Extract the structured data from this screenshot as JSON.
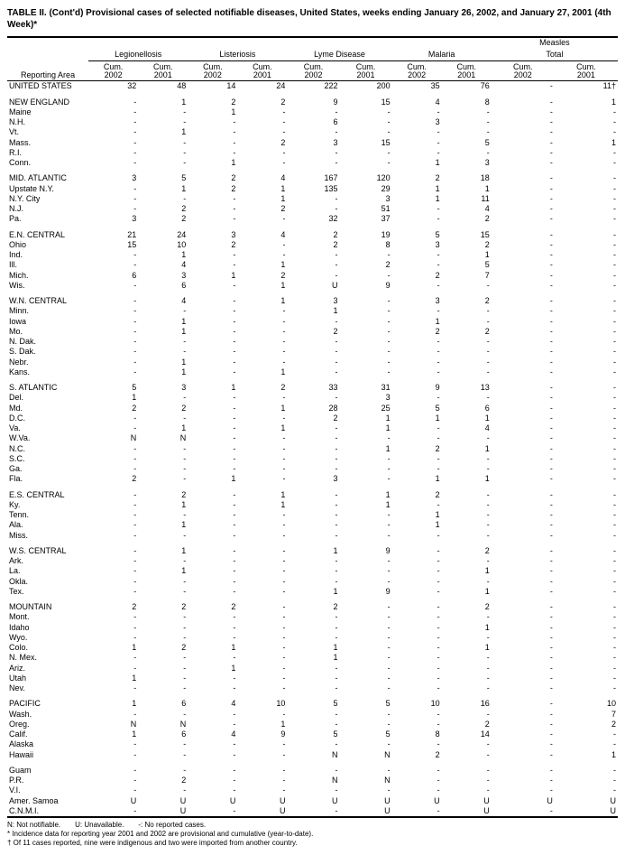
{
  "title": "TABLE II. (Cont'd) Provisional cases of selected notifiable diseases, United States, weeks ending January 26, 2002, and January 27, 2001 (4th Week)*",
  "reporting_area_label": "Reporting Area",
  "col_groups": [
    {
      "label": "Legionellosis"
    },
    {
      "label": "Listeriosis"
    },
    {
      "label": "Lyme Disease"
    },
    {
      "label": "Malaria"
    },
    {
      "label": "Measles",
      "sublabel": "Total"
    }
  ],
  "sub_headers": [
    "Cum.\n2002",
    "Cum.\n2001"
  ],
  "footnotes": [
    "N: Not notifiable.  U: Unavailable.  -: No reported cases.",
    "* Incidence data for reporting year 2001 and 2002 are provisional and cumulative (year-to-date).",
    "† Of 11 cases reported, nine were indigenous and two were imported from another country."
  ],
  "sections": [
    {
      "rows": [
        {
          "area": "UNITED STATES",
          "v": [
            "32",
            "48",
            "14",
            "24",
            "222",
            "200",
            "35",
            "76",
            "-",
            "11†"
          ]
        }
      ]
    },
    {
      "rows": [
        {
          "area": "NEW ENGLAND",
          "v": [
            "-",
            "1",
            "2",
            "2",
            "9",
            "15",
            "4",
            "8",
            "-",
            "1"
          ]
        },
        {
          "area": "Maine",
          "v": [
            "-",
            "-",
            "1",
            "-",
            "-",
            "-",
            "-",
            "-",
            "-",
            "-"
          ]
        },
        {
          "area": "N.H.",
          "v": [
            "-",
            "-",
            "-",
            "-",
            "6",
            "-",
            "3",
            "-",
            "-",
            "-"
          ]
        },
        {
          "area": "Vt.",
          "v": [
            "-",
            "1",
            "-",
            "-",
            "-",
            "-",
            "-",
            "-",
            "-",
            "-"
          ]
        },
        {
          "area": "Mass.",
          "v": [
            "-",
            "-",
            "-",
            "2",
            "3",
            "15",
            "-",
            "5",
            "-",
            "1"
          ]
        },
        {
          "area": "R.I.",
          "v": [
            "-",
            "-",
            "-",
            "-",
            "-",
            "-",
            "-",
            "-",
            "-",
            "-"
          ]
        },
        {
          "area": "Conn.",
          "v": [
            "-",
            "-",
            "1",
            "-",
            "-",
            "-",
            "1",
            "3",
            "-",
            "-"
          ]
        }
      ]
    },
    {
      "rows": [
        {
          "area": "MID. ATLANTIC",
          "v": [
            "3",
            "5",
            "2",
            "4",
            "167",
            "120",
            "2",
            "18",
            "-",
            "-"
          ]
        },
        {
          "area": "Upstate N.Y.",
          "v": [
            "-",
            "1",
            "2",
            "1",
            "135",
            "29",
            "1",
            "1",
            "-",
            "-"
          ]
        },
        {
          "area": "N.Y. City",
          "v": [
            "-",
            "-",
            "-",
            "1",
            "-",
            "3",
            "1",
            "11",
            "-",
            "-"
          ]
        },
        {
          "area": "N.J.",
          "v": [
            "-",
            "2",
            "-",
            "2",
            "-",
            "51",
            "-",
            "4",
            "-",
            "-"
          ]
        },
        {
          "area": "Pa.",
          "v": [
            "3",
            "2",
            "-",
            "-",
            "32",
            "37",
            "-",
            "2",
            "-",
            "-"
          ]
        }
      ]
    },
    {
      "rows": [
        {
          "area": "E.N. CENTRAL",
          "v": [
            "21",
            "24",
            "3",
            "4",
            "2",
            "19",
            "5",
            "15",
            "-",
            "-"
          ]
        },
        {
          "area": "Ohio",
          "v": [
            "15",
            "10",
            "2",
            "-",
            "2",
            "8",
            "3",
            "2",
            "-",
            "-"
          ]
        },
        {
          "area": "Ind.",
          "v": [
            "-",
            "1",
            "-",
            "-",
            "-",
            "-",
            "-",
            "1",
            "-",
            "-"
          ]
        },
        {
          "area": "Ill.",
          "v": [
            "-",
            "4",
            "-",
            "1",
            "-",
            "2",
            "-",
            "5",
            "-",
            "-"
          ]
        },
        {
          "area": "Mich.",
          "v": [
            "6",
            "3",
            "1",
            "2",
            "-",
            "-",
            "2",
            "7",
            "-",
            "-"
          ]
        },
        {
          "area": "Wis.",
          "v": [
            "-",
            "6",
            "-",
            "1",
            "U",
            "9",
            "-",
            "-",
            "-",
            "-"
          ]
        }
      ]
    },
    {
      "rows": [
        {
          "area": "W.N. CENTRAL",
          "v": [
            "-",
            "4",
            "-",
            "1",
            "3",
            "-",
            "3",
            "2",
            "-",
            "-"
          ]
        },
        {
          "area": "Minn.",
          "v": [
            "-",
            "-",
            "-",
            "-",
            "1",
            "-",
            "-",
            "-",
            "-",
            "-"
          ]
        },
        {
          "area": "Iowa",
          "v": [
            "-",
            "1",
            "-",
            "-",
            "-",
            "-",
            "1",
            "-",
            "-",
            "-"
          ]
        },
        {
          "area": "Mo.",
          "v": [
            "-",
            "1",
            "-",
            "-",
            "2",
            "-",
            "2",
            "2",
            "-",
            "-"
          ]
        },
        {
          "area": "N. Dak.",
          "v": [
            "-",
            "-",
            "-",
            "-",
            "-",
            "-",
            "-",
            "-",
            "-",
            "-"
          ]
        },
        {
          "area": "S. Dak.",
          "v": [
            "-",
            "-",
            "-",
            "-",
            "-",
            "-",
            "-",
            "-",
            "-",
            "-"
          ]
        },
        {
          "area": "Nebr.",
          "v": [
            "-",
            "1",
            "-",
            "-",
            "-",
            "-",
            "-",
            "-",
            "-",
            "-"
          ]
        },
        {
          "area": "Kans.",
          "v": [
            "-",
            "1",
            "-",
            "1",
            "-",
            "-",
            "-",
            "-",
            "-",
            "-"
          ]
        }
      ]
    },
    {
      "rows": [
        {
          "area": "S. ATLANTIC",
          "v": [
            "5",
            "3",
            "1",
            "2",
            "33",
            "31",
            "9",
            "13",
            "-",
            "-"
          ]
        },
        {
          "area": "Del.",
          "v": [
            "1",
            "-",
            "-",
            "-",
            "-",
            "3",
            "-",
            "-",
            "-",
            "-"
          ]
        },
        {
          "area": "Md.",
          "v": [
            "2",
            "2",
            "-",
            "1",
            "28",
            "25",
            "5",
            "6",
            "-",
            "-"
          ]
        },
        {
          "area": "D.C.",
          "v": [
            "-",
            "-",
            "-",
            "-",
            "2",
            "1",
            "1",
            "1",
            "-",
            "-"
          ]
        },
        {
          "area": "Va.",
          "v": [
            "-",
            "1",
            "-",
            "1",
            "-",
            "1",
            "-",
            "4",
            "-",
            "-"
          ]
        },
        {
          "area": "W.Va.",
          "v": [
            "N",
            "N",
            "-",
            "-",
            "-",
            "-",
            "-",
            "-",
            "-",
            "-"
          ]
        },
        {
          "area": "N.C.",
          "v": [
            "-",
            "-",
            "-",
            "-",
            "-",
            "1",
            "2",
            "1",
            "-",
            "-"
          ]
        },
        {
          "area": "S.C.",
          "v": [
            "-",
            "-",
            "-",
            "-",
            "-",
            "-",
            "-",
            "-",
            "-",
            "-"
          ]
        },
        {
          "area": "Ga.",
          "v": [
            "-",
            "-",
            "-",
            "-",
            "-",
            "-",
            "-",
            "-",
            "-",
            "-"
          ]
        },
        {
          "area": "Fla.",
          "v": [
            "2",
            "-",
            "1",
            "-",
            "3",
            "-",
            "1",
            "1",
            "-",
            "-"
          ]
        }
      ]
    },
    {
      "rows": [
        {
          "area": "E.S. CENTRAL",
          "v": [
            "-",
            "2",
            "-",
            "1",
            "-",
            "1",
            "2",
            "-",
            "-",
            "-"
          ]
        },
        {
          "area": "Ky.",
          "v": [
            "-",
            "1",
            "-",
            "1",
            "-",
            "1",
            "-",
            "-",
            "-",
            "-"
          ]
        },
        {
          "area": "Tenn.",
          "v": [
            "-",
            "-",
            "-",
            "-",
            "-",
            "-",
            "1",
            "-",
            "-",
            "-"
          ]
        },
        {
          "area": "Ala.",
          "v": [
            "-",
            "1",
            "-",
            "-",
            "-",
            "-",
            "1",
            "-",
            "-",
            "-"
          ]
        },
        {
          "area": "Miss.",
          "v": [
            "-",
            "-",
            "-",
            "-",
            "-",
            "-",
            "-",
            "-",
            "-",
            "-"
          ]
        }
      ]
    },
    {
      "rows": [
        {
          "area": "W.S. CENTRAL",
          "v": [
            "-",
            "1",
            "-",
            "-",
            "1",
            "9",
            "-",
            "2",
            "-",
            "-"
          ]
        },
        {
          "area": "Ark.",
          "v": [
            "-",
            "-",
            "-",
            "-",
            "-",
            "-",
            "-",
            "-",
            "-",
            "-"
          ]
        },
        {
          "area": "La.",
          "v": [
            "-",
            "1",
            "-",
            "-",
            "-",
            "-",
            "-",
            "1",
            "-",
            "-"
          ]
        },
        {
          "area": "Okla.",
          "v": [
            "-",
            "-",
            "-",
            "-",
            "-",
            "-",
            "-",
            "-",
            "-",
            "-"
          ]
        },
        {
          "area": "Tex.",
          "v": [
            "-",
            "-",
            "-",
            "-",
            "1",
            "9",
            "-",
            "1",
            "-",
            "-"
          ]
        }
      ]
    },
    {
      "rows": [
        {
          "area": "MOUNTAIN",
          "v": [
            "2",
            "2",
            "2",
            "-",
            "2",
            "-",
            "-",
            "2",
            "-",
            "-"
          ]
        },
        {
          "area": "Mont.",
          "v": [
            "-",
            "-",
            "-",
            "-",
            "-",
            "-",
            "-",
            "-",
            "-",
            "-"
          ]
        },
        {
          "area": "Idaho",
          "v": [
            "-",
            "-",
            "-",
            "-",
            "-",
            "-",
            "-",
            "1",
            "-",
            "-"
          ]
        },
        {
          "area": "Wyo.",
          "v": [
            "-",
            "-",
            "-",
            "-",
            "-",
            "-",
            "-",
            "-",
            "-",
            "-"
          ]
        },
        {
          "area": "Colo.",
          "v": [
            "1",
            "2",
            "1",
            "-",
            "1",
            "-",
            "-",
            "1",
            "-",
            "-"
          ]
        },
        {
          "area": "N. Mex.",
          "v": [
            "-",
            "-",
            "-",
            "-",
            "1",
            "-",
            "-",
            "-",
            "-",
            "-"
          ]
        },
        {
          "area": "Ariz.",
          "v": [
            "-",
            "-",
            "1",
            "-",
            "-",
            "-",
            "-",
            "-",
            "-",
            "-"
          ]
        },
        {
          "area": "Utah",
          "v": [
            "1",
            "-",
            "-",
            "-",
            "-",
            "-",
            "-",
            "-",
            "-",
            "-"
          ]
        },
        {
          "area": "Nev.",
          "v": [
            "-",
            "-",
            "-",
            "-",
            "-",
            "-",
            "-",
            "-",
            "-",
            "-"
          ]
        }
      ]
    },
    {
      "rows": [
        {
          "area": "PACIFIC",
          "v": [
            "1",
            "6",
            "4",
            "10",
            "5",
            "5",
            "10",
            "16",
            "-",
            "10"
          ]
        },
        {
          "area": "Wash.",
          "v": [
            "-",
            "-",
            "-",
            "-",
            "-",
            "-",
            "-",
            "-",
            "-",
            "7"
          ]
        },
        {
          "area": "Oreg.",
          "v": [
            "N",
            "N",
            "-",
            "1",
            "-",
            "-",
            "-",
            "2",
            "-",
            "2"
          ]
        },
        {
          "area": "Calif.",
          "v": [
            "1",
            "6",
            "4",
            "9",
            "5",
            "5",
            "8",
            "14",
            "-",
            "-"
          ]
        },
        {
          "area": "Alaska",
          "v": [
            "-",
            "-",
            "-",
            "-",
            "-",
            "-",
            "-",
            "-",
            "-",
            "-"
          ]
        },
        {
          "area": "Hawaii",
          "v": [
            "-",
            "-",
            "-",
            "-",
            "N",
            "N",
            "2",
            "-",
            "-",
            "1"
          ]
        }
      ]
    },
    {
      "rows": [
        {
          "area": "Guam",
          "v": [
            "-",
            "-",
            "-",
            "-",
            "-",
            "-",
            "-",
            "-",
            "-",
            "-"
          ]
        },
        {
          "area": "P.R.",
          "v": [
            "-",
            "2",
            "-",
            "-",
            "N",
            "N",
            "-",
            "-",
            "-",
            "-"
          ]
        },
        {
          "area": "V.I.",
          "v": [
            "-",
            "-",
            "-",
            "-",
            "-",
            "-",
            "-",
            "-",
            "-",
            "-"
          ]
        },
        {
          "area": "Amer. Samoa",
          "v": [
            "U",
            "U",
            "U",
            "U",
            "U",
            "U",
            "U",
            "U",
            "U",
            "U"
          ]
        },
        {
          "area": "C.N.M.I.",
          "v": [
            "-",
            "U",
            "-",
            "U",
            "-",
            "U",
            "-",
            "U",
            "-",
            "U"
          ]
        }
      ]
    }
  ]
}
